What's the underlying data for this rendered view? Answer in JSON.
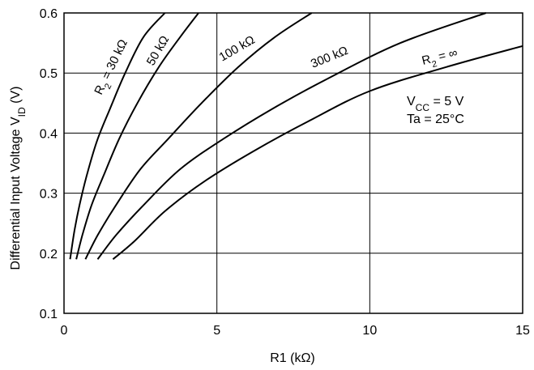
{
  "chart_data": {
    "type": "line",
    "title": "",
    "xlabel": "R1  (kΩ)",
    "ylabel_main": "Differential Input Voltage  V",
    "ylabel_sub": "ID",
    "ylabel_unit": "  (V)",
    "xlim": [
      0,
      15
    ],
    "ylim": [
      0.1,
      0.6
    ],
    "x_ticks": [
      "0",
      "5",
      "10",
      "15"
    ],
    "y_ticks": [
      "0.1",
      "0.2",
      "0.3",
      "0.4",
      "0.5",
      "0.6"
    ],
    "grid": true,
    "conditions": {
      "vcc_main": "V",
      "vcc_sub": "CC",
      "vcc_rest": " = 5 V",
      "ta": "Ta = 25°C"
    },
    "series": [
      {
        "name": "R2 = 30 kΩ",
        "label_main": "R",
        "label_sub": "2",
        "label_rest": " = 30 kΩ",
        "x": [
          0.2,
          0.35,
          0.55,
          0.8,
          1.1,
          1.5,
          2.0,
          2.6,
          3.3
        ],
        "y": [
          0.19,
          0.24,
          0.29,
          0.34,
          0.39,
          0.44,
          0.5,
          0.56,
          0.6
        ]
      },
      {
        "name": "50 kΩ",
        "label_main": "50 kΩ",
        "label_sub": "",
        "label_rest": "",
        "x": [
          0.4,
          0.6,
          0.9,
          1.3,
          1.8,
          2.4,
          3.1,
          3.8,
          4.4
        ],
        "y": [
          0.19,
          0.23,
          0.28,
          0.33,
          0.39,
          0.45,
          0.51,
          0.56,
          0.6
        ]
      },
      {
        "name": "100 kΩ",
        "label_main": "100 kΩ",
        "label_sub": "",
        "label_rest": "",
        "x": [
          0.7,
          1.1,
          1.7,
          2.5,
          3.4,
          4.5,
          5.7,
          6.9,
          8.1
        ],
        "y": [
          0.19,
          0.23,
          0.28,
          0.34,
          0.39,
          0.45,
          0.51,
          0.56,
          0.6
        ]
      },
      {
        "name": "300 kΩ",
        "label_main": "300 kΩ",
        "label_sub": "",
        "label_rest": "",
        "x": [
          1.1,
          1.7,
          2.6,
          3.8,
          5.2,
          6.8,
          8.6,
          11.0,
          13.8
        ],
        "y": [
          0.19,
          0.23,
          0.28,
          0.34,
          0.39,
          0.44,
          0.49,
          0.55,
          0.6
        ]
      },
      {
        "name": "R2 = ∞",
        "label_main": "R",
        "label_sub": "2",
        "label_rest": " = ∞",
        "x": [
          1.6,
          2.3,
          3.3,
          4.6,
          6.2,
          8.0,
          10.0,
          12.5,
          15.0
        ],
        "y": [
          0.19,
          0.22,
          0.27,
          0.32,
          0.37,
          0.42,
          0.47,
          0.51,
          0.545
        ]
      }
    ]
  }
}
